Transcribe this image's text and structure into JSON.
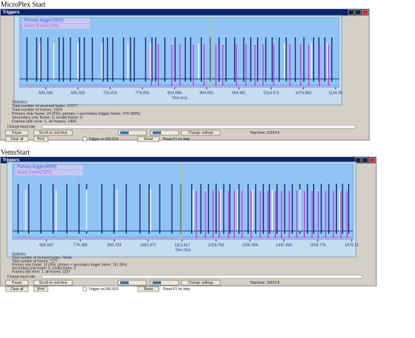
{
  "captions": [
    "MicroPlex Start",
    "VemsStart"
  ],
  "windows": [
    {
      "title": "Triggers",
      "legend": [
        {
          "name": "Primary trigger(2625)",
          "color": "#3355ff"
        },
        {
          "name": "Spark Event(1406)",
          "color": "#cc55ee"
        }
      ],
      "xlim": [
        546.5,
        1141.5
      ],
      "xticks": [
        595.036,
        655.025,
        715.015,
        775.006,
        834.996,
        894.991,
        954.981,
        1014.972,
        1074.963,
        1134.95
      ],
      "xlabel": "Time (ms)",
      "primary": [
        560,
        578,
        586,
        599,
        620,
        628,
        641,
        658,
        667,
        682,
        702,
        710,
        720,
        740,
        753,
        760,
        781,
        793,
        800,
        817,
        836,
        855,
        865,
        885,
        902,
        918,
        931,
        947,
        964,
        977,
        990,
        1005,
        1017,
        1030,
        1043,
        1060,
        1076,
        1094,
        1104,
        1115,
        1128
      ],
      "secondary": [
        584,
        610,
        655,
        700,
        748,
        790,
        830,
        880,
        925,
        985,
        1040,
        1090,
        1120
      ],
      "spark": [
        792,
        805,
        830,
        845,
        870,
        890,
        912,
        925,
        950,
        968,
        985,
        1000,
        1020,
        1050,
        1070,
        1085,
        1105,
        1122
      ],
      "stats": [
        "Statistics",
        "Total number of received bytes: 17077",
        "Total number of frames: 1909",
        "Primary only frame: 24 (5%), primary + secondary trigger frame: 470 (90%)",
        "Secondary only frame: 0, invalid frame: 0",
        "Frames with error: 1, all frames: 1409"
      ],
      "baud_label": "Change baud rate",
      "buttons": [
        "Pause",
        "Scroll on real time",
        "Change settings"
      ],
      "total_time": "Total time: 20234.5",
      "bottom": [
        "Clear all",
        "Print",
        "Trigger on 550.619",
        "Reset",
        "Press F1 for help"
      ]
    },
    {
      "title": "Triggers",
      "legend": [
        {
          "name": "Primary trigger(4658)",
          "color": "#3355ff"
        },
        {
          "name": "Spark Event(2507)",
          "color": "#cc55ee"
        }
      ],
      "xlim": [
        557.2,
        1674.7
      ],
      "xticks": [
        668.047,
        779.388,
        890.729,
        1002.071,
        1113.412,
        1224.753,
        1336.094,
        1447.435,
        1558.776,
        1670.11
      ],
      "xlabel": "Time (ms)",
      "primary": [
        575,
        610,
        650,
        690,
        735,
        775,
        800,
        850,
        890,
        930,
        975,
        1005,
        1040,
        1080,
        1110,
        1145,
        1175,
        1200,
        1225,
        1250,
        1270,
        1300,
        1330,
        1355,
        1380,
        1400,
        1425,
        1450,
        1475,
        1500,
        1525,
        1545,
        1570,
        1595,
        1620,
        1640,
        1660
      ],
      "secondary": [
        600,
        700,
        800,
        900,
        1010,
        1150,
        1190,
        1240,
        1295,
        1345,
        1410,
        1500,
        1560,
        1630
      ],
      "spark": [
        1160,
        1190,
        1215,
        1235,
        1265,
        1285,
        1310,
        1340,
        1370,
        1395,
        1420,
        1440,
        1465,
        1490,
        1515,
        1540,
        1560,
        1585,
        1610,
        1635,
        1655
      ],
      "stats": [
        "Statistics",
        "Total number of received bytes: 74446",
        "Total number of frames: 7177",
        "Primary only frame: 10 (0%), primary + secondary trigger frame: 761 (9%)",
        "Secondary only frame: 0, invalid frame: 0",
        "Frames with error: 1, all frames: 2237"
      ],
      "baud_label": "Change baud rate",
      "buttons": [
        "Pause",
        "Scroll on real time",
        "Change settings"
      ],
      "total_time": "Total time: 36623.8",
      "bottom": [
        "Clear all",
        "Print",
        "Trigger on 550.619",
        "Reset",
        "Press F1 for help"
      ]
    }
  ]
}
